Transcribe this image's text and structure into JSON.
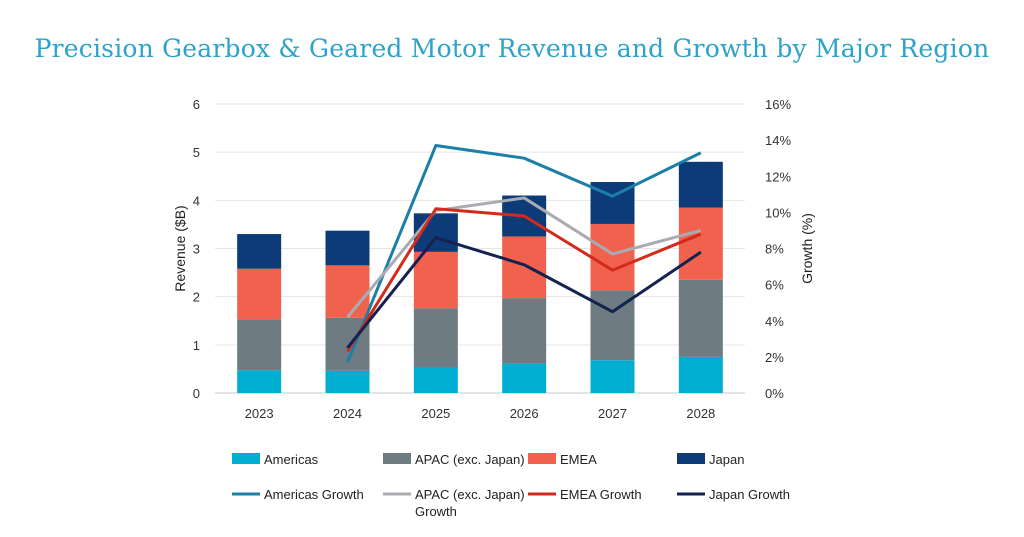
{
  "chart_data": {
    "type": "bar",
    "title": "Precision Gearbox & Geared Motor Revenue and Growth by Major Region",
    "categories": [
      "2023",
      "2024",
      "2025",
      "2026",
      "2027",
      "2028"
    ],
    "ylabel": "Revenue ($B)",
    "y2label": "Growth (%)",
    "ylim": [
      0,
      6
    ],
    "y2lim": [
      0,
      16
    ],
    "yticks": [
      "0",
      "1",
      "2",
      "3",
      "4",
      "5",
      "6"
    ],
    "y2ticks": [
      "0%",
      "2%",
      "4%",
      "6%",
      "8%",
      "10%",
      "12%",
      "14%",
      "16%"
    ],
    "grid": true,
    "legend_position": "bottom",
    "bar_series": [
      {
        "name": "Americas",
        "color": "#00aed1",
        "values": [
          0.47,
          0.46,
          0.53,
          0.61,
          0.68,
          0.75
        ]
      },
      {
        "name": "APAC (exc. Japan)",
        "color": "#6e7b83",
        "values": [
          1.06,
          1.1,
          1.23,
          1.36,
          1.45,
          1.6
        ]
      },
      {
        "name": "EMEA",
        "color": "#f0614e",
        "values": [
          1.05,
          1.09,
          1.17,
          1.28,
          1.38,
          1.5
        ]
      },
      {
        "name": "Japan",
        "color": "#0d3b78",
        "values": [
          0.72,
          0.72,
          0.8,
          0.85,
          0.87,
          0.95
        ]
      }
    ],
    "line_series": [
      {
        "name": "Americas Growth",
        "color": "#1b7fa8",
        "x": [
          "2024",
          "2025",
          "2026",
          "2027",
          "2028"
        ],
        "values": [
          1.7,
          13.7,
          13.0,
          10.9,
          13.3
        ]
      },
      {
        "name": "APAC (exc. Japan) Growth",
        "color": "#a8acb0",
        "x": [
          "2024",
          "2025",
          "2026",
          "2027",
          "2028"
        ],
        "values": [
          4.2,
          10.1,
          10.8,
          7.7,
          9.0
        ]
      },
      {
        "name": "EMEA Growth",
        "color": "#d42a1c",
        "x": [
          "2024",
          "2025",
          "2026",
          "2027",
          "2028"
        ],
        "values": [
          2.3,
          10.2,
          9.8,
          6.8,
          8.8
        ]
      },
      {
        "name": "Japan Growth",
        "color": "#13224f",
        "x": [
          "2024",
          "2025",
          "2026",
          "2027",
          "2028"
        ],
        "values": [
          2.5,
          8.6,
          7.1,
          4.5,
          7.8
        ]
      }
    ],
    "legend": [
      {
        "label": "Americas",
        "kind": "box",
        "color": "#00aed1"
      },
      {
        "label": "APAC (exc. Japan)",
        "kind": "box",
        "color": "#6e7b83"
      },
      {
        "label": "EMEA",
        "kind": "box",
        "color": "#f0614e"
      },
      {
        "label": "Japan",
        "kind": "box",
        "color": "#0d3b78"
      },
      {
        "label": "Americas Growth",
        "kind": "line",
        "color": "#1b7fa8"
      },
      {
        "label": "APAC (exc. Japan)",
        "label2": "Growth",
        "kind": "line",
        "color": "#a8acb0"
      },
      {
        "label": "EMEA Growth",
        "kind": "line",
        "color": "#d42a1c"
      },
      {
        "label": "Japan Growth",
        "kind": "line",
        "color": "#13224f"
      }
    ]
  }
}
